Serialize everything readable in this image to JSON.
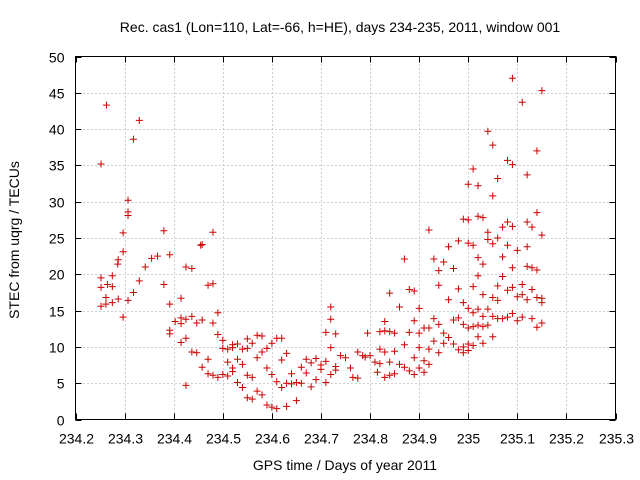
{
  "chart_data": {
    "type": "scatter",
    "title": "Rec. cas1 (Lon=110, Lat=-66, h=HE), days 234-235, 2011, window 001",
    "xlabel": "GPS time / Days of year 2011",
    "ylabel": "STEC from uqrg / TECUs",
    "xlim": [
      234.2,
      235.3
    ],
    "ylim": [
      0,
      50
    ],
    "xticks": [
      "234.2",
      "234.3",
      "234.4",
      "234.5",
      "234.6",
      "234.7",
      "234.8",
      "234.9",
      "235",
      "235.1",
      "235.2",
      "235.3"
    ],
    "yticks": [
      "0",
      "5",
      "10",
      "15",
      "20",
      "25",
      "30",
      "35",
      "40",
      "45",
      "50"
    ],
    "grid": true,
    "marker": "plus",
    "color": "#cc0000",
    "points": [
      [
        234.252,
        35.2
      ],
      [
        234.263,
        43.3
      ],
      [
        234.252,
        19.5
      ],
      [
        234.252,
        18.2
      ],
      [
        234.252,
        15.6
      ],
      [
        234.262,
        16.8
      ],
      [
        234.262,
        15.9
      ],
      [
        234.265,
        18.6
      ],
      [
        234.275,
        19.8
      ],
      [
        234.275,
        18.3
      ],
      [
        234.275,
        16.1
      ],
      [
        234.286,
        21.4
      ],
      [
        234.287,
        22.0
      ],
      [
        234.287,
        16.6
      ],
      [
        234.297,
        25.7
      ],
      [
        234.297,
        23.1
      ],
      [
        234.297,
        14.1
      ],
      [
        234.307,
        30.2
      ],
      [
        234.307,
        28.6
      ],
      [
        234.307,
        28.1
      ],
      [
        234.307,
        16.4
      ],
      [
        234.318,
        38.6
      ],
      [
        234.318,
        17.5
      ],
      [
        234.33,
        41.2
      ],
      [
        234.33,
        19.1
      ],
      [
        234.342,
        21.0
      ],
      [
        234.355,
        22.2
      ],
      [
        234.367,
        22.5
      ],
      [
        234.38,
        26.0
      ],
      [
        234.38,
        18.6
      ],
      [
        234.392,
        22.7
      ],
      [
        234.392,
        15.9
      ],
      [
        234.392,
        12.3
      ],
      [
        234.392,
        11.8
      ],
      [
        234.403,
        13.5
      ],
      [
        234.415,
        16.7
      ],
      [
        234.415,
        14.0
      ],
      [
        234.415,
        13.2
      ],
      [
        234.415,
        10.6
      ],
      [
        234.425,
        21.0
      ],
      [
        234.425,
        13.8
      ],
      [
        234.425,
        11.2
      ],
      [
        234.425,
        4.7
      ],
      [
        234.437,
        20.8
      ],
      [
        234.437,
        14.2
      ],
      [
        234.437,
        9.3
      ],
      [
        234.447,
        13.3
      ],
      [
        234.447,
        9.2
      ],
      [
        234.455,
        24.0
      ],
      [
        234.458,
        24.1
      ],
      [
        234.458,
        13.7
      ],
      [
        234.458,
        7.2
      ],
      [
        234.47,
        18.5
      ],
      [
        234.47,
        8.3
      ],
      [
        234.47,
        6.3
      ],
      [
        234.48,
        25.8
      ],
      [
        234.48,
        18.7
      ],
      [
        234.48,
        13.3
      ],
      [
        234.48,
        6.1
      ],
      [
        234.49,
        14.7
      ],
      [
        234.49,
        11.7
      ],
      [
        234.49,
        5.8
      ],
      [
        234.5,
        10.9
      ],
      [
        234.5,
        9.8
      ],
      [
        234.5,
        6.2
      ],
      [
        234.51,
        9.7
      ],
      [
        234.51,
        7.9
      ],
      [
        234.51,
        6.0
      ],
      [
        234.52,
        10.3
      ],
      [
        234.52,
        9.9
      ],
      [
        234.52,
        7.1
      ],
      [
        234.52,
        6.6
      ],
      [
        234.53,
        10.4
      ],
      [
        234.53,
        8.3
      ],
      [
        234.53,
        5.1
      ],
      [
        234.54,
        9.7
      ],
      [
        234.54,
        7.6
      ],
      [
        234.54,
        4.4
      ],
      [
        234.55,
        11.1
      ],
      [
        234.55,
        9.8
      ],
      [
        234.55,
        6.1
      ],
      [
        234.55,
        3.0
      ],
      [
        234.56,
        10.5
      ],
      [
        234.56,
        5.8
      ],
      [
        234.56,
        2.8
      ],
      [
        234.57,
        11.6
      ],
      [
        234.57,
        8.5
      ],
      [
        234.57,
        3.9
      ],
      [
        234.58,
        11.5
      ],
      [
        234.58,
        9.3
      ],
      [
        234.58,
        3.4
      ],
      [
        234.59,
        9.8
      ],
      [
        234.59,
        7.1
      ],
      [
        234.59,
        2.0
      ],
      [
        234.6,
        10.5
      ],
      [
        234.6,
        6.2
      ],
      [
        234.6,
        1.7
      ],
      [
        234.61,
        11.2
      ],
      [
        234.61,
        5.2
      ],
      [
        234.61,
        1.5
      ],
      [
        234.62,
        11.2
      ],
      [
        234.62,
        8.2
      ],
      [
        234.62,
        4.4
      ],
      [
        234.63,
        9.1
      ],
      [
        234.63,
        5.0
      ],
      [
        234.63,
        1.8
      ],
      [
        234.64,
        6.3
      ],
      [
        234.64,
        4.9
      ],
      [
        234.65,
        5.1
      ],
      [
        234.65,
        2.6
      ],
      [
        234.66,
        7.2
      ],
      [
        234.66,
        5.0
      ],
      [
        234.67,
        8.3
      ],
      [
        234.67,
        6.4
      ],
      [
        234.68,
        7.8
      ],
      [
        234.68,
        4.5
      ],
      [
        234.69,
        8.4
      ],
      [
        234.69,
        5.5
      ],
      [
        234.7,
        7.5
      ],
      [
        234.7,
        6.9
      ],
      [
        234.71,
        12.0
      ],
      [
        234.71,
        8.0
      ],
      [
        234.71,
        5.1
      ],
      [
        234.72,
        15.5
      ],
      [
        234.72,
        13.8
      ],
      [
        234.72,
        9.9
      ],
      [
        234.72,
        6.2
      ],
      [
        234.73,
        11.8
      ],
      [
        234.73,
        7.3
      ],
      [
        234.73,
        6.8
      ],
      [
        234.74,
        8.8
      ],
      [
        234.75,
        8.5
      ],
      [
        234.76,
        7.1
      ],
      [
        234.765,
        5.8
      ],
      [
        234.775,
        9.3
      ],
      [
        234.775,
        5.7
      ],
      [
        234.785,
        8.8
      ],
      [
        234.79,
        8.6
      ],
      [
        234.795,
        11.9
      ],
      [
        234.8,
        8.8
      ],
      [
        234.81,
        7.9
      ],
      [
        234.815,
        6.5
      ],
      [
        234.82,
        12.1
      ],
      [
        234.82,
        9.7
      ],
      [
        234.82,
        7.7
      ],
      [
        234.83,
        13.5
      ],
      [
        234.83,
        12.2
      ],
      [
        234.83,
        9.3
      ],
      [
        234.83,
        5.8
      ],
      [
        234.84,
        17.4
      ],
      [
        234.84,
        12.1
      ],
      [
        234.84,
        7.9
      ],
      [
        234.84,
        6.1
      ],
      [
        234.85,
        11.9
      ],
      [
        234.85,
        9.4
      ],
      [
        234.85,
        6.3
      ],
      [
        234.86,
        15.5
      ],
      [
        234.86,
        7.6
      ],
      [
        234.87,
        22.1
      ],
      [
        234.87,
        10.3
      ],
      [
        234.87,
        7.2
      ],
      [
        234.88,
        17.9
      ],
      [
        234.88,
        12.0
      ],
      [
        234.88,
        6.7
      ],
      [
        234.89,
        17.7
      ],
      [
        234.89,
        13.6
      ],
      [
        234.89,
        8.5
      ],
      [
        234.89,
        6.2
      ],
      [
        234.9,
        15.3
      ],
      [
        234.9,
        11.9
      ],
      [
        234.9,
        9.9
      ],
      [
        234.9,
        7.1
      ],
      [
        234.91,
        12.6
      ],
      [
        234.91,
        8.1
      ],
      [
        234.91,
        6.5
      ],
      [
        234.92,
        26.1
      ],
      [
        234.92,
        12.6
      ],
      [
        234.92,
        9.7
      ],
      [
        234.92,
        7.6
      ],
      [
        234.93,
        22.1
      ],
      [
        234.93,
        13.9
      ],
      [
        234.93,
        10.8
      ],
      [
        234.94,
        20.5
      ],
      [
        234.94,
        18.5
      ],
      [
        234.94,
        13.1
      ],
      [
        234.94,
        9.2
      ],
      [
        234.95,
        21.7
      ],
      [
        234.95,
        11.9
      ],
      [
        234.95,
        10.5
      ],
      [
        234.96,
        23.8
      ],
      [
        234.96,
        16.5
      ],
      [
        234.96,
        11.3
      ],
      [
        234.97,
        20.8
      ],
      [
        234.97,
        13.7
      ],
      [
        234.97,
        10.4
      ],
      [
        234.98,
        24.6
      ],
      [
        234.98,
        18.0
      ],
      [
        234.98,
        14.0
      ],
      [
        234.98,
        9.6
      ],
      [
        234.99,
        27.6
      ],
      [
        234.99,
        16.1
      ],
      [
        234.99,
        13.1
      ],
      [
        234.99,
        10.0
      ],
      [
        234.99,
        9.2
      ],
      [
        235.0,
        32.4
      ],
      [
        235.0,
        27.5
      ],
      [
        235.0,
        24.3
      ],
      [
        235.0,
        15.3
      ],
      [
        235.0,
        12.6
      ],
      [
        235.0,
        10.4
      ],
      [
        235.0,
        9.5
      ],
      [
        235.01,
        34.5
      ],
      [
        235.01,
        24.0
      ],
      [
        235.01,
        18.3
      ],
      [
        235.01,
        14.7
      ],
      [
        235.01,
        12.8
      ],
      [
        235.01,
        10.2
      ],
      [
        235.02,
        32.2
      ],
      [
        235.02,
        28.0
      ],
      [
        235.02,
        22.3
      ],
      [
        235.02,
        19.8
      ],
      [
        235.02,
        15.2
      ],
      [
        235.02,
        13.0
      ],
      [
        235.02,
        11.4
      ],
      [
        235.03,
        27.8
      ],
      [
        235.03,
        21.4
      ],
      [
        235.03,
        17.2
      ],
      [
        235.03,
        14.2
      ],
      [
        235.03,
        12.8
      ],
      [
        235.03,
        10.5
      ],
      [
        235.04,
        39.7
      ],
      [
        235.04,
        25.8
      ],
      [
        235.04,
        24.8
      ],
      [
        235.04,
        15.2
      ],
      [
        235.04,
        13.0
      ],
      [
        235.05,
        37.8
      ],
      [
        235.05,
        30.8
      ],
      [
        235.05,
        24.2
      ],
      [
        235.05,
        16.8
      ],
      [
        235.05,
        14.2
      ],
      [
        235.05,
        11.4
      ],
      [
        235.06,
        33.2
      ],
      [
        235.06,
        25.0
      ],
      [
        235.06,
        18.4
      ],
      [
        235.06,
        16.4
      ],
      [
        235.06,
        13.9
      ],
      [
        235.07,
        26.5
      ],
      [
        235.07,
        22.4
      ],
      [
        235.07,
        19.7
      ],
      [
        235.07,
        13.9
      ],
      [
        235.08,
        35.7
      ],
      [
        235.08,
        27.2
      ],
      [
        235.08,
        24.0
      ],
      [
        235.08,
        17.8
      ],
      [
        235.08,
        14.1
      ],
      [
        235.09,
        47.0
      ],
      [
        235.09,
        35.1
      ],
      [
        235.09,
        26.6
      ],
      [
        235.09,
        20.9
      ],
      [
        235.09,
        18.2
      ],
      [
        235.09,
        14.6
      ],
      [
        235.1,
        23.3
      ],
      [
        235.1,
        16.9
      ],
      [
        235.1,
        13.6
      ],
      [
        235.11,
        43.7
      ],
      [
        235.11,
        18.6
      ],
      [
        235.11,
        17.2
      ],
      [
        235.11,
        14.1
      ],
      [
        235.12,
        33.7
      ],
      [
        235.12,
        27.2
      ],
      [
        235.12,
        23.8
      ],
      [
        235.12,
        21.1
      ],
      [
        235.12,
        16.5
      ],
      [
        235.13,
        26.5
      ],
      [
        235.13,
        20.9
      ],
      [
        235.13,
        17.9
      ],
      [
        235.13,
        13.9
      ],
      [
        235.14,
        37.0
      ],
      [
        235.14,
        28.5
      ],
      [
        235.14,
        20.6
      ],
      [
        235.14,
        16.8
      ],
      [
        235.14,
        12.7
      ],
      [
        235.15,
        45.3
      ],
      [
        235.15,
        25.4
      ],
      [
        235.15,
        16.7
      ],
      [
        235.15,
        16.1
      ],
      [
        235.15,
        13.3
      ]
    ]
  }
}
